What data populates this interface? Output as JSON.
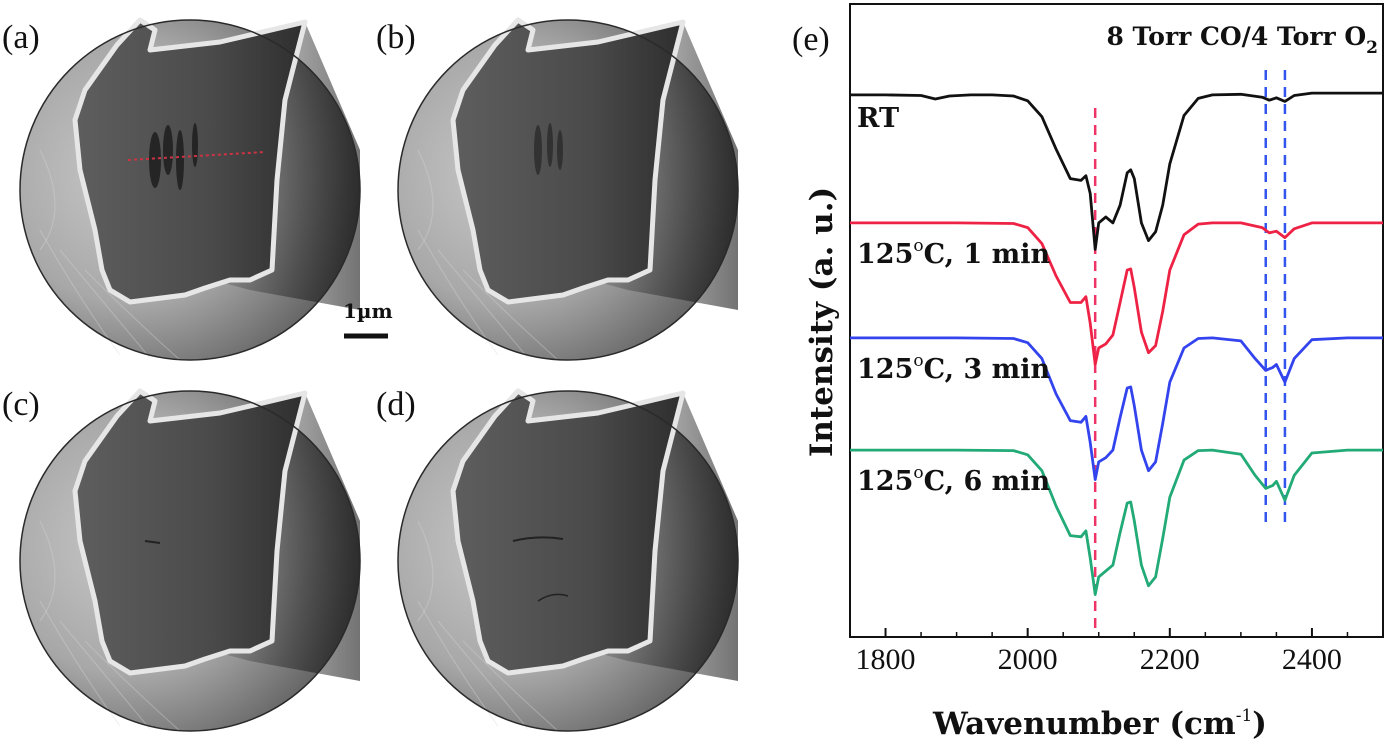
{
  "panels": {
    "a": "(a)",
    "b": "(b)",
    "c": "(c)",
    "d": "(d)",
    "e": "(e)"
  },
  "scale_bar_label": "1µm",
  "chart_data": {
    "type": "line",
    "panel": "(e)",
    "title": {
      "main": "8 Torr CO/4 Torr O",
      "sub": "2"
    },
    "xlabel": {
      "main": "Wavenumber (cm",
      "sup": "-1",
      "end": ")"
    },
    "ylabel": "Intensity (a. u.)",
    "xlim": [
      1750,
      2500
    ],
    "xticks": [
      1800,
      2000,
      2200,
      2400
    ],
    "ylim": [
      0,
      1
    ],
    "yticks_shown": false,
    "marker_lines": [
      {
        "x": 2095,
        "color": "#ee3366",
        "style": "dashed"
      },
      {
        "x": 2335,
        "color": "#3355ee",
        "style": "dashed"
      },
      {
        "x": 2362,
        "color": "#3355ee",
        "style": "dashed"
      }
    ],
    "series": [
      {
        "name": "RT",
        "label_pre": "RT",
        "label_sup": "",
        "label_post": "",
        "color": "#111111",
        "x": [
          1750,
          1800,
          1850,
          1870,
          1890,
          1920,
          1950,
          1980,
          2000,
          2020,
          2040,
          2060,
          2075,
          2082,
          2088,
          2095,
          2100,
          2110,
          2120,
          2130,
          2140,
          2145,
          2150,
          2160,
          2170,
          2180,
          2190,
          2200,
          2220,
          2240,
          2260,
          2300,
          2330,
          2340,
          2350,
          2362,
          2375,
          2400,
          2450,
          2500
        ],
        "y": [
          0.907,
          0.907,
          0.906,
          0.9,
          0.905,
          0.907,
          0.907,
          0.905,
          0.897,
          0.87,
          0.815,
          0.765,
          0.762,
          0.77,
          0.74,
          0.645,
          0.69,
          0.7,
          0.69,
          0.72,
          0.775,
          0.78,
          0.765,
          0.69,
          0.66,
          0.675,
          0.72,
          0.79,
          0.872,
          0.901,
          0.907,
          0.908,
          0.903,
          0.898,
          0.902,
          0.896,
          0.906,
          0.91,
          0.91,
          0.91
        ]
      },
      {
        "name": "125oC, 1 min",
        "label_pre": "125",
        "label_sup": "o",
        "label_post": "C, 1 min",
        "color": "#ee2244",
        "x": [
          1750,
          1900,
          1980,
          2000,
          2020,
          2040,
          2060,
          2075,
          2082,
          2088,
          2095,
          2100,
          2110,
          2120,
          2130,
          2140,
          2145,
          2150,
          2160,
          2170,
          2180,
          2190,
          2200,
          2220,
          2240,
          2260,
          2300,
          2330,
          2340,
          2350,
          2362,
          2375,
          2400,
          2450,
          2500
        ],
        "y": [
          0.69,
          0.69,
          0.689,
          0.682,
          0.655,
          0.6,
          0.555,
          0.555,
          0.565,
          0.52,
          0.45,
          0.478,
          0.485,
          0.5,
          0.555,
          0.61,
          0.612,
          0.58,
          0.505,
          0.47,
          0.482,
          0.54,
          0.61,
          0.67,
          0.688,
          0.69,
          0.69,
          0.682,
          0.673,
          0.676,
          0.665,
          0.68,
          0.69,
          0.69,
          0.69
        ]
      },
      {
        "name": "125oC, 3 min",
        "label_pre": "125",
        "label_sup": "o",
        "label_post": "C, 3 min",
        "color": "#3344ee",
        "x": [
          1750,
          1900,
          1980,
          2000,
          2020,
          2040,
          2060,
          2075,
          2082,
          2088,
          2095,
          2100,
          2110,
          2120,
          2130,
          2140,
          2145,
          2150,
          2160,
          2170,
          2180,
          2190,
          2200,
          2220,
          2240,
          2260,
          2300,
          2320,
          2335,
          2345,
          2350,
          2362,
          2375,
          2400,
          2450,
          2500
        ],
        "y": [
          0.495,
          0.495,
          0.494,
          0.487,
          0.46,
          0.4,
          0.355,
          0.352,
          0.362,
          0.318,
          0.255,
          0.285,
          0.292,
          0.305,
          0.36,
          0.41,
          0.412,
          0.38,
          0.305,
          0.27,
          0.285,
          0.35,
          0.42,
          0.478,
          0.494,
          0.495,
          0.49,
          0.46,
          0.44,
          0.445,
          0.45,
          0.42,
          0.46,
          0.492,
          0.495,
          0.495
        ]
      },
      {
        "name": "125oC, 6 min",
        "label_pre": "125",
        "label_sup": "o",
        "label_post": "C, 6 min",
        "color": "#22aa77",
        "x": [
          1750,
          1900,
          1980,
          2000,
          2020,
          2040,
          2060,
          2075,
          2082,
          2088,
          2095,
          2100,
          2110,
          2120,
          2130,
          2140,
          2145,
          2150,
          2160,
          2170,
          2180,
          2190,
          2200,
          2220,
          2240,
          2260,
          2300,
          2320,
          2335,
          2345,
          2350,
          2362,
          2375,
          2400,
          2450,
          2500
        ],
        "y": [
          0.305,
          0.305,
          0.304,
          0.297,
          0.27,
          0.21,
          0.16,
          0.158,
          0.168,
          0.122,
          0.06,
          0.09,
          0.1,
          0.11,
          0.165,
          0.215,
          0.217,
          0.185,
          0.11,
          0.075,
          0.09,
          0.155,
          0.225,
          0.288,
          0.304,
          0.305,
          0.298,
          0.262,
          0.24,
          0.245,
          0.252,
          0.22,
          0.262,
          0.3,
          0.305,
          0.305
        ]
      }
    ]
  }
}
